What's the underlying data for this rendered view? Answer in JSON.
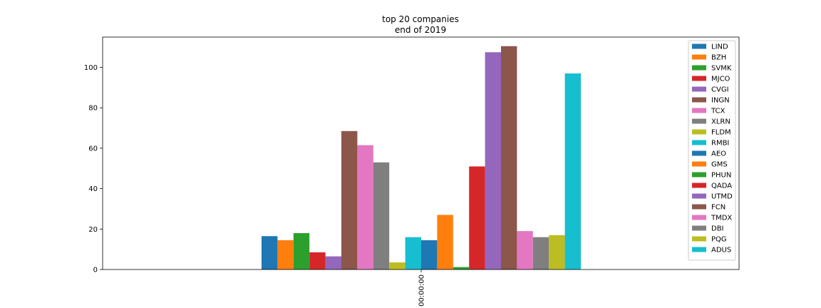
{
  "chart_data": {
    "type": "bar",
    "title": "top 20 companies",
    "subtitle": "end of 2019",
    "xlabel": "",
    "ylabel": "",
    "categories": [
      "00:00:00"
    ],
    "ylim": [
      0,
      115
    ],
    "yticks": [
      0,
      20,
      40,
      60,
      80,
      100
    ],
    "grid": false,
    "legend_position": "top-right",
    "series": [
      {
        "name": "LIND",
        "color": "#1f77b4",
        "values": [
          16.5
        ]
      },
      {
        "name": "BZH",
        "color": "#ff7f0e",
        "values": [
          14.5
        ]
      },
      {
        "name": "SVMK",
        "color": "#2ca02c",
        "values": [
          18.0
        ]
      },
      {
        "name": "MJCO",
        "color": "#d62728",
        "values": [
          8.5
        ]
      },
      {
        "name": "CVGI",
        "color": "#9467bd",
        "values": [
          6.5
        ]
      },
      {
        "name": "INGN",
        "color": "#8c564b",
        "values": [
          68.5
        ]
      },
      {
        "name": "TCX",
        "color": "#e377c2",
        "values": [
          61.5
        ]
      },
      {
        "name": "XLRN",
        "color": "#7f7f7f",
        "values": [
          53.0
        ]
      },
      {
        "name": "FLDM",
        "color": "#bcbd22",
        "values": [
          3.5
        ]
      },
      {
        "name": "RMBI",
        "color": "#17becf",
        "values": [
          16.0
        ]
      },
      {
        "name": "AEO",
        "color": "#1f77b4",
        "values": [
          14.5
        ]
      },
      {
        "name": "GMS",
        "color": "#ff7f0e",
        "values": [
          27.0
        ]
      },
      {
        "name": "PHUN",
        "color": "#2ca02c",
        "values": [
          1.2
        ]
      },
      {
        "name": "QADA",
        "color": "#d62728",
        "values": [
          51.0
        ]
      },
      {
        "name": "UTMD",
        "color": "#9467bd",
        "values": [
          107.5
        ]
      },
      {
        "name": "FCN",
        "color": "#8c564b",
        "values": [
          110.5
        ]
      },
      {
        "name": "TMDX",
        "color": "#e377c2",
        "values": [
          19.0
        ]
      },
      {
        "name": "DBI",
        "color": "#7f7f7f",
        "values": [
          16.0
        ]
      },
      {
        "name": "PQG",
        "color": "#bcbd22",
        "values": [
          17.0
        ]
      },
      {
        "name": "ADUS",
        "color": "#17becf",
        "values": [
          97.0
        ]
      }
    ]
  }
}
